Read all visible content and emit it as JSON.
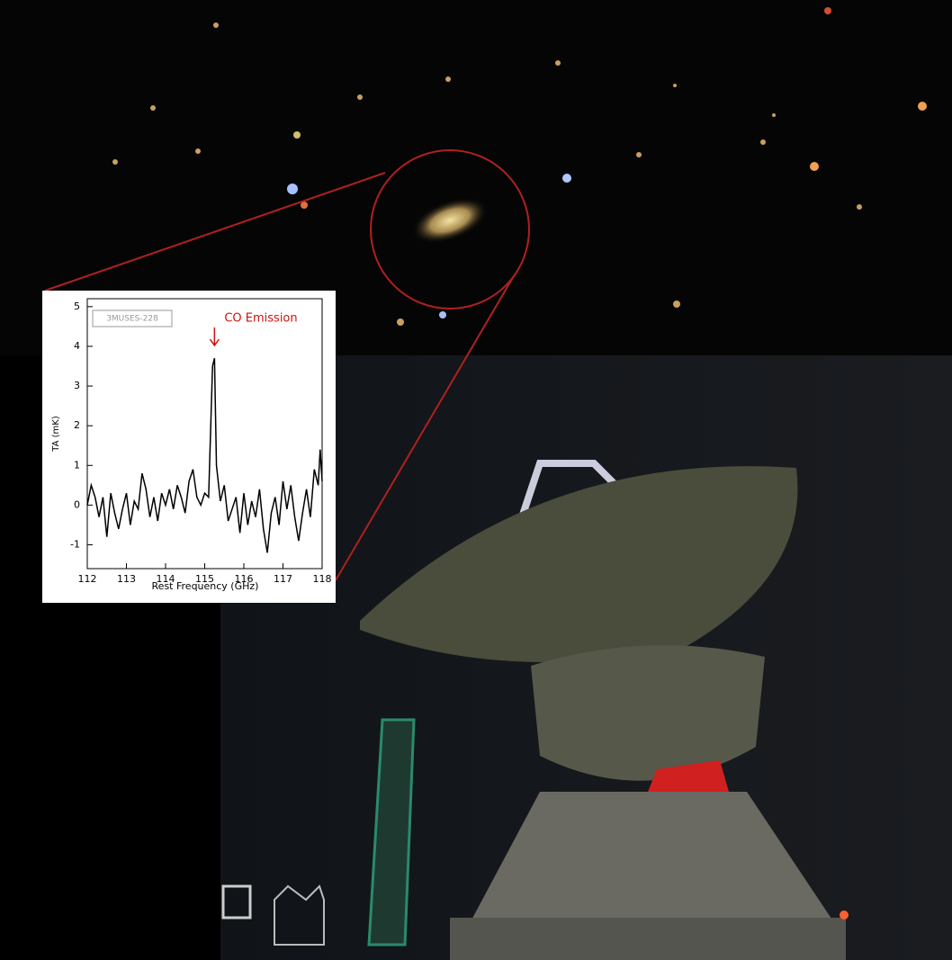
{
  "chart_data": {
    "type": "line",
    "legend_label": "3MUSES-228",
    "annotation": "CO Emission",
    "xlabel": "Rest Frequency (GHz)",
    "ylabel": "TA (mK)",
    "color": "#000000",
    "annotation_color": "#d01010",
    "x": [
      112.0,
      112.1,
      112.2,
      112.3,
      112.4,
      112.5,
      112.6,
      112.7,
      112.8,
      112.9,
      113.0,
      113.1,
      113.2,
      113.3,
      113.4,
      113.5,
      113.6,
      113.7,
      113.8,
      113.9,
      114.0,
      114.1,
      114.2,
      114.3,
      114.4,
      114.5,
      114.6,
      114.7,
      114.8,
      114.9,
      115.0,
      115.1,
      115.2,
      115.25,
      115.3,
      115.4,
      115.5,
      115.6,
      115.7,
      115.8,
      115.9,
      116.0,
      116.1,
      116.2,
      116.3,
      116.4,
      116.5,
      116.6,
      116.7,
      116.8,
      116.9,
      117.0,
      117.1,
      117.2,
      117.3,
      117.4,
      117.5,
      117.6,
      117.7,
      117.8,
      117.9,
      117.95,
      118.0
    ],
    "values": [
      0.0,
      0.5,
      0.2,
      -0.3,
      0.2,
      -0.8,
      0.3,
      -0.2,
      -0.6,
      -0.1,
      0.3,
      -0.5,
      0.1,
      -0.1,
      0.8,
      0.4,
      -0.3,
      0.2,
      -0.4,
      0.3,
      0.0,
      0.4,
      -0.1,
      0.5,
      0.2,
      -0.2,
      0.6,
      0.9,
      0.2,
      0.0,
      0.3,
      0.2,
      3.5,
      3.7,
      1.0,
      0.1,
      0.5,
      -0.4,
      -0.1,
      0.2,
      -0.7,
      0.3,
      -0.5,
      0.1,
      -0.3,
      0.4,
      -0.6,
      -1.2,
      -0.2,
      0.2,
      -0.5,
      0.6,
      -0.1,
      0.5,
      -0.3,
      -0.9,
      -0.2,
      0.4,
      -0.3,
      0.9,
      0.5,
      1.4,
      0.6
    ],
    "xlim": [
      112,
      118
    ],
    "xticks": [
      112,
      113,
      114,
      115,
      116,
      117,
      118
    ],
    "ylim": [
      -1.6,
      5.2
    ],
    "yticks": [
      -1,
      0,
      1,
      2,
      3,
      4,
      5
    ]
  }
}
